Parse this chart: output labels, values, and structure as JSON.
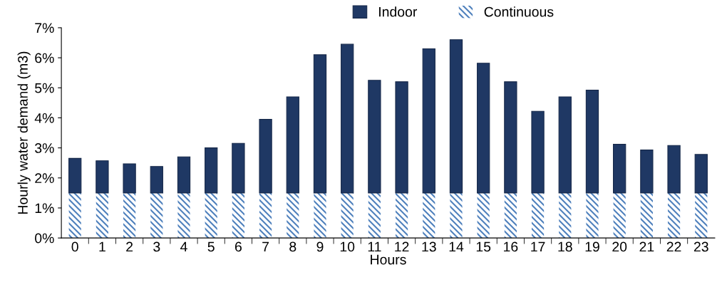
{
  "chart_data": {
    "type": "bar",
    "stacked": true,
    "xlabel": "Hours",
    "ylabel": "Hourly water demand (m3)",
    "categories": [
      "0",
      "1",
      "2",
      "3",
      "4",
      "5",
      "6",
      "7",
      "8",
      "9",
      "10",
      "11",
      "12",
      "13",
      "14",
      "15",
      "16",
      "17",
      "18",
      "19",
      "20",
      "21",
      "22",
      "23"
    ],
    "series": [
      {
        "name": "Continuous",
        "color": "#4f81bd",
        "values": [
          1.5,
          1.5,
          1.5,
          1.5,
          1.5,
          1.5,
          1.5,
          1.5,
          1.5,
          1.5,
          1.5,
          1.5,
          1.5,
          1.5,
          1.5,
          1.5,
          1.5,
          1.5,
          1.5,
          1.5,
          1.5,
          1.5,
          1.5,
          1.5
        ]
      },
      {
        "name": "Indoor",
        "color": "#1f3864",
        "values": [
          1.15,
          1.07,
          0.97,
          0.88,
          1.2,
          1.5,
          1.65,
          2.45,
          3.2,
          4.6,
          4.95,
          3.75,
          3.7,
          4.8,
          5.1,
          4.32,
          3.7,
          2.72,
          3.2,
          3.42,
          1.62,
          1.43,
          1.58,
          1.28
        ]
      }
    ],
    "ylim": [
      0,
      7
    ],
    "yticks": [
      {
        "value": 0,
        "label": "0%"
      },
      {
        "value": 1,
        "label": "1%"
      },
      {
        "value": 2,
        "label": "2%"
      },
      {
        "value": 3,
        "label": "3%"
      },
      {
        "value": 4,
        "label": "4%"
      },
      {
        "value": 5,
        "label": "5%"
      },
      {
        "value": 6,
        "label": "6%"
      },
      {
        "value": 7,
        "label": "7%"
      }
    ],
    "grid": false,
    "legend": "top"
  }
}
